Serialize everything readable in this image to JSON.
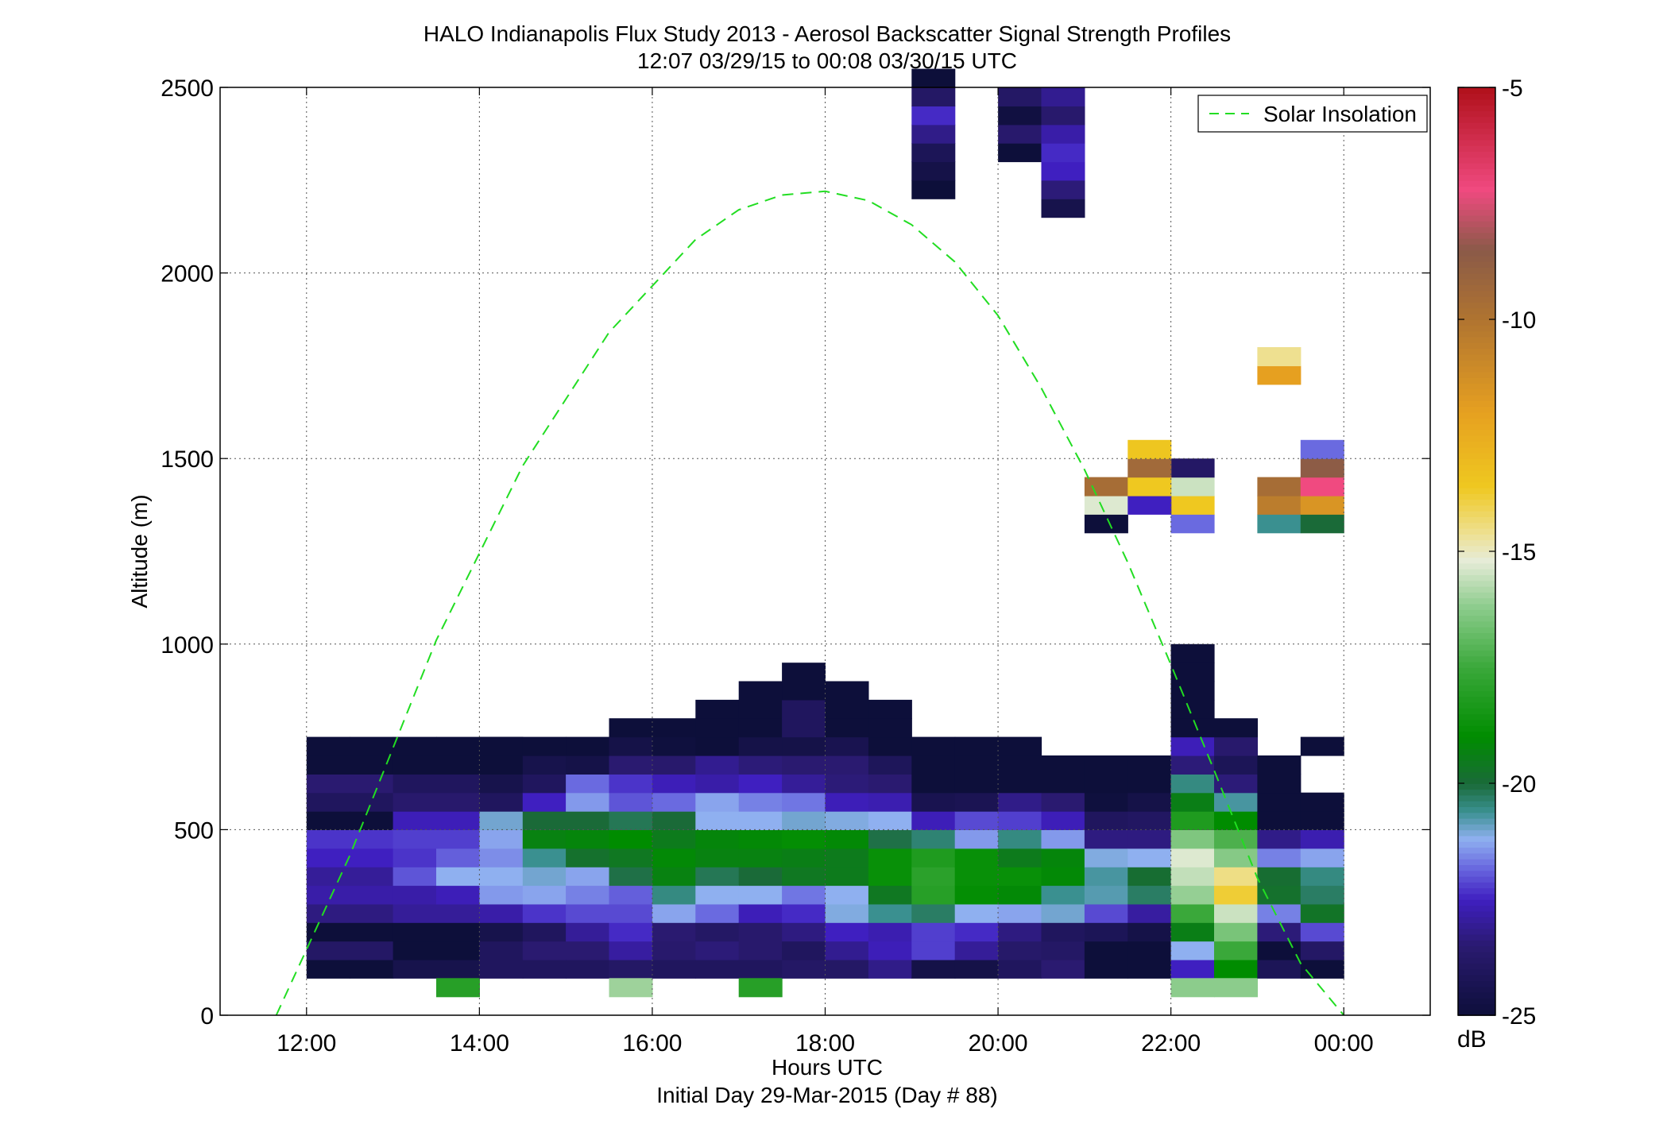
{
  "chart_data": {
    "type": "heatmap",
    "title": "HALO Indianapolis Flux Study 2013 - Aerosol Backscatter Signal Strength Profiles",
    "subtitle": "12:07 03/29/15 to 00:08 03/30/15  UTC",
    "xlabel": "Hours UTC",
    "xlabel2": "Initial Day 29-Mar-2015 (Day # 88)",
    "ylabel": "Altitude (m)",
    "x_range_hours": [
      11.0,
      25.0
    ],
    "y_range_m": [
      0,
      2500
    ],
    "grid": true,
    "x_ticks": [
      {
        "value": 12,
        "label": "12:00"
      },
      {
        "value": 14,
        "label": "14:00"
      },
      {
        "value": 16,
        "label": "16:00"
      },
      {
        "value": 18,
        "label": "18:00"
      },
      {
        "value": 20,
        "label": "20:00"
      },
      {
        "value": 22,
        "label": "22:00"
      },
      {
        "value": 24,
        "label": "00:00"
      }
    ],
    "y_ticks": [
      0,
      500,
      1000,
      1500,
      2000,
      2500
    ],
    "colorbar": {
      "label": "dB",
      "min": -25,
      "max": -5,
      "ticks": [
        -5,
        -10,
        -15,
        -20,
        -25
      ],
      "stops": [
        {
          "value": -25,
          "color": "#0d0f3a"
        },
        {
          "value": -23.5,
          "color": "#2a1a70"
        },
        {
          "value": -22.5,
          "color": "#3f1fc0"
        },
        {
          "value": -21.8,
          "color": "#6a6ae0"
        },
        {
          "value": -21.2,
          "color": "#8fb0f0"
        },
        {
          "value": -20.6,
          "color": "#3a9090"
        },
        {
          "value": -20.0,
          "color": "#1a6a38"
        },
        {
          "value": -19.0,
          "color": "#008c00"
        },
        {
          "value": -17.5,
          "color": "#3aa83a"
        },
        {
          "value": -16.2,
          "color": "#8ccc8c"
        },
        {
          "value": -15.2,
          "color": "#e6ecd8"
        },
        {
          "value": -14.6,
          "color": "#eee090"
        },
        {
          "value": -13.6,
          "color": "#efc820"
        },
        {
          "value": -12.0,
          "color": "#e6a020"
        },
        {
          "value": -10.0,
          "color": "#b07430"
        },
        {
          "value": -8.5,
          "color": "#8a5a48"
        },
        {
          "value": -7.2,
          "color": "#f04a80"
        },
        {
          "value": -5.0,
          "color": "#b0101a"
        }
      ]
    },
    "legend": {
      "entries": [
        "Solar Insolation"
      ],
      "placement": "top-right",
      "line_color": "#22dd22",
      "line_style": "dashed"
    },
    "solar_insolation": {
      "x_hours": [
        11.65,
        12.5,
        13.5,
        14.5,
        15.5,
        16.5,
        17.0,
        17.5,
        18.0,
        18.5,
        19.0,
        19.5,
        20.0,
        20.5,
        21.0,
        21.5,
        22.0,
        22.5,
        23.0,
        23.5,
        24.0
      ],
      "altitude_m": [
        0,
        430,
        1010,
        1480,
        1840,
        2090,
        2170,
        2210,
        2220,
        2195,
        2130,
        2030,
        1885,
        1690,
        1470,
        1220,
        945,
        660,
        370,
        140,
        0
      ]
    },
    "x_bin_hours": 0.5,
    "y_bin_m": 50,
    "cells": [
      {
        "x": 12.0,
        "cols": 2,
        "y": 100,
        "v": [
          -25,
          -23.8,
          -25,
          -23.3,
          -22.8,
          -23,
          -22.5,
          -22.3,
          -25,
          -24,
          -23.5,
          -25,
          -25
        ]
      },
      {
        "x": 13.0,
        "y": 100,
        "v": [
          -24.5,
          -25,
          -25,
          -23,
          -22.8,
          -22,
          -22.3,
          -22.2,
          -22.6,
          -23.6,
          -24,
          -25,
          -25
        ]
      },
      {
        "x": 13.5,
        "y": 100,
        "v": [
          -24.5,
          -25,
          -25,
          -23,
          -22.6,
          -21.2,
          -21.9,
          -22.2,
          -22.6,
          -23.6,
          -24,
          -25,
          -25
        ]
      },
      {
        "x": 13.5,
        "y": 50,
        "v": [
          -18
        ]
      },
      {
        "x": 14.0,
        "y": 100,
        "v": [
          -24,
          -24,
          -24.5,
          -22.8,
          -21.4,
          -21.2,
          -21.5,
          -21.3,
          -21,
          -24,
          -24.5,
          -25,
          -25
        ]
      },
      {
        "x": 14.0,
        "y": 650,
        "v": [
          -25,
          -25
        ]
      },
      {
        "x": 14.5,
        "y": 100,
        "v": [
          -24,
          -23.5,
          -24,
          -22.3,
          -21.3,
          -21.0,
          -20.6,
          -19.3,
          -20,
          -22.5,
          -24,
          -24.5,
          -25
        ]
      },
      {
        "x": 15.0,
        "y": 100,
        "v": [
          -24,
          -23.5,
          -23,
          -22.1,
          -21.6,
          -21.3,
          -19.8,
          -19.2,
          -20,
          -21.4,
          -21.8,
          -24.6,
          -25
        ]
      },
      {
        "x": 15.5,
        "y": 100,
        "v": [
          -23.8,
          -22.9,
          -22.4,
          -22.1,
          -21.9,
          -20.1,
          -19.6,
          -19.0,
          -20.2,
          -22.0,
          -22.3,
          -23.5,
          -24.6,
          -25
        ]
      },
      {
        "x": 15.5,
        "y": 50,
        "v": [
          -16
        ]
      },
      {
        "x": 16.0,
        "y": 100,
        "v": [
          -24,
          -23.6,
          -23.5,
          -21.3,
          -20.5,
          -19.3,
          -19.1,
          -19.5,
          -20.0,
          -21.8,
          -22.6,
          -23.6,
          -24.9,
          -25
        ]
      },
      {
        "x": 16.5,
        "y": 100,
        "v": [
          -24,
          -23.4,
          -23.8,
          -21.8,
          -21.2,
          -20.2,
          -19.3,
          -19.2,
          -21.2,
          -21.3,
          -22.8,
          -23.1,
          -25,
          -25,
          -25
        ]
      },
      {
        "x": 17.0,
        "y": 100,
        "v": [
          -24,
          -23.6,
          -23.6,
          -22.6,
          -21.2,
          -20.0,
          -19.3,
          -19.1,
          -21.2,
          -21.6,
          -22.5,
          -23.4,
          -24.6,
          -25,
          -25,
          -25
        ]
      },
      {
        "x": 17.0,
        "y": 50,
        "v": [
          -18
        ]
      },
      {
        "x": 17.5,
        "y": 100,
        "v": [
          -23.8,
          -24,
          -23.3,
          -22.4,
          -21.7,
          -19.6,
          -19.4,
          -18.9,
          -21.0,
          -21.7,
          -23,
          -23.5,
          -24.6,
          -24,
          -24,
          -25,
          -25
        ]
      },
      {
        "x": 18.0,
        "y": 100,
        "v": [
          -23.8,
          -23.1,
          -22.5,
          -21.1,
          -21.2,
          -19.5,
          -19.5,
          -19.1,
          -21.1,
          -22.6,
          -23.4,
          -23.5,
          -24.4,
          -25,
          -25,
          -25
        ]
      },
      {
        "x": 18.5,
        "y": 100,
        "v": [
          -23.2,
          -22.6,
          -22.7,
          -20.6,
          -19.6,
          -18.8,
          -18.8,
          -20.1,
          -21.2,
          -22.7,
          -23.5,
          -24.1,
          -25,
          -25,
          -25
        ]
      },
      {
        "x": 19.0,
        "y": 100,
        "v": [
          -24.6,
          -22.2,
          -22.2,
          -20.3,
          -18.0,
          -17.9,
          -18.2,
          -20.4,
          -22.6,
          -24.4,
          -25,
          -25,
          -25
        ]
      },
      {
        "x": 19.5,
        "y": 100,
        "v": [
          -24.6,
          -23.0,
          -22.4,
          -21.2,
          -18.9,
          -18.8,
          -18.8,
          -21.4,
          -22.1,
          -24.3,
          -25,
          -25,
          -25
        ]
      },
      {
        "x": 20.0,
        "y": 100,
        "v": [
          -24,
          -23.7,
          -23.3,
          -21.3,
          -19.1,
          -18.8,
          -19.5,
          -20.5,
          -22.2,
          -23.2,
          -25,
          -25,
          -25
        ]
      },
      {
        "x": 20.5,
        "y": 100,
        "v": [
          -23.5,
          -23.8,
          -24.0,
          -21.0,
          -20.6,
          -19.1,
          -19.2,
          -21.4,
          -22.6,
          -23.5,
          -25,
          -25
        ]
      },
      {
        "x": 21.0,
        "y": 100,
        "v": [
          -25,
          -25,
          -24.2,
          -22.1,
          -20.8,
          -20.7,
          -21.1,
          -23.3,
          -24.0,
          -24.9,
          -25,
          -25
        ]
      },
      {
        "x": 21.5,
        "y": 100,
        "v": [
          -25,
          -25,
          -24.6,
          -22.9,
          -20.3,
          -19.9,
          -21.2,
          -23.3,
          -23.9,
          -24.6,
          -25,
          -25
        ]
      },
      {
        "x": 22.0,
        "y": 100,
        "v": [
          -22.5,
          -21.2,
          -19.4,
          -17.5,
          -16.1,
          -15.6,
          -15.3,
          -16.4,
          -18.2,
          -19.4,
          -20.5,
          -23.4,
          -22.6,
          -25,
          -25,
          -25,
          -25,
          -25
        ]
      },
      {
        "x": 22.0,
        "y": 50,
        "v": [
          -16.2
        ]
      },
      {
        "x": 22.0,
        "y": 1300,
        "v": [
          -21.8,
          -13.6,
          -15.5,
          -23.8
        ]
      },
      {
        "x": 22.5,
        "y": 100,
        "v": [
          -19.0,
          -17.5,
          -16.5,
          -15.5,
          -13.8,
          -14.5,
          -16.3,
          -17.2,
          -19.0,
          -20.7,
          -23.4,
          -24.2,
          -23.6,
          -25
        ]
      },
      {
        "x": 22.5,
        "y": 50,
        "v": [
          -16.2
        ]
      },
      {
        "x": 23.0,
        "y": 100,
        "v": [
          -24.2,
          -25,
          -23.4,
          -21.6,
          -19.8,
          -19.9,
          -21.6,
          -23.2,
          -25,
          -25,
          -25,
          -25
        ]
      },
      {
        "x": 23.0,
        "y": 1300,
        "v": [
          -20.6,
          -10.4,
          -9.6
        ]
      },
      {
        "x": 23.0,
        "y": 1700,
        "v": [
          -12.0,
          -14.6
        ]
      },
      {
        "x": 23.5,
        "y": 100,
        "v": [
          -25,
          -23.8,
          -22.1,
          -19.7,
          -20.3,
          -20.5,
          -21.3,
          -22.7,
          -25,
          -25
        ]
      },
      {
        "x": 23.5,
        "y": 700,
        "v": [
          -25
        ]
      },
      {
        "x": 23.5,
        "y": 1300,
        "v": [
          -20.0,
          -11.5,
          -7.2,
          -8.6,
          -21.8
        ]
      },
      {
        "x": 21.0,
        "y": 1300,
        "v": [
          -25,
          -15.3,
          -9.6
        ]
      },
      {
        "x": 21.5,
        "y": 1350,
        "v": [
          -22.5,
          -13.6,
          -9.4,
          -13.5
        ]
      },
      {
        "x": 19.0,
        "y": 2200,
        "v": [
          -25,
          -24.6,
          -24.2,
          -23.2,
          -22.4,
          -23.8,
          -25
        ]
      },
      {
        "x": 20.0,
        "y": 2300,
        "v": [
          -25,
          -23.6,
          -24.8,
          -23.8
        ]
      },
      {
        "x": 20.5,
        "y": 2150,
        "v": [
          -24.5,
          -23.4,
          -22.5,
          -22.4,
          -22.8,
          -23.6,
          -23.1
        ]
      }
    ]
  }
}
